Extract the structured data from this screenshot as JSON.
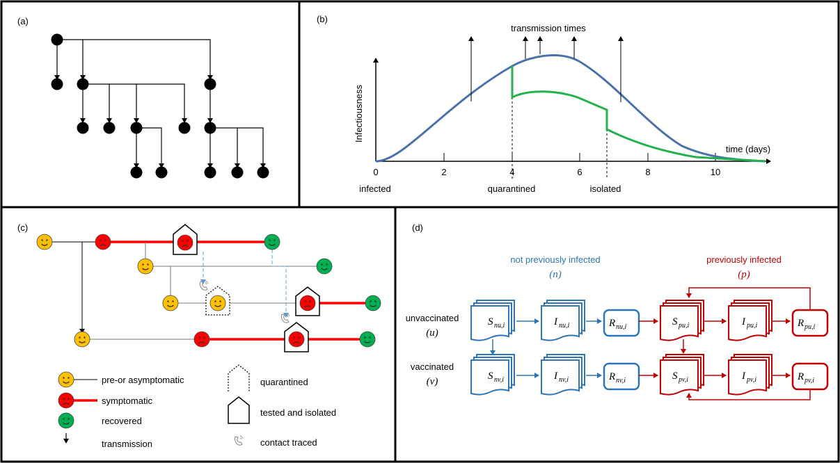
{
  "panel_a": {
    "label": "(a)"
  },
  "panel_b": {
    "label": "(b)",
    "transmission_times": "transmission times",
    "ylabel": "Infectiousness",
    "xlabel": "time (days)",
    "ticks": [
      "0",
      "2",
      "4",
      "6",
      "8",
      "10"
    ],
    "event_infected": "infected",
    "event_quarantined": "quarantined",
    "event_isolated": "isolated",
    "colors": {
      "curve": "#4a72a8",
      "reduced_curve": "#22b14c"
    }
  },
  "panel_c": {
    "label": "(c)",
    "legend": {
      "presymptomatic": "pre-or asymptomatic",
      "symptomatic": "symptomatic",
      "recovered": "recovered",
      "transmission": "transmission",
      "quarantined": "quarantined",
      "tested_isolated": "tested and isolated",
      "contact_traced": "contact traced"
    },
    "colors": {
      "presymptomatic": "#ffc000",
      "symptomatic": "#ff0000",
      "recovered": "#00b050",
      "trace_arrow": "#5b9bd5"
    }
  },
  "panel_d": {
    "label": "(d)",
    "group_n": "not previously infected",
    "group_n_sym": "(n)",
    "group_p": "previously infected",
    "group_p_sym": "(p)",
    "row_u": "unvaccinated",
    "row_u_sym": "(u)",
    "row_v": "vaccinated",
    "row_v_sym": "(v)",
    "nodes": {
      "S_nu": {
        "main": "S",
        "sub": "nu,i"
      },
      "I_nu": {
        "main": "I",
        "sub": "nu,i"
      },
      "R_nu": {
        "main": "R",
        "sub": "nu,i"
      },
      "S_pu": {
        "main": "S",
        "sub": "pu,i"
      },
      "I_pu": {
        "main": "I",
        "sub": "pu,i"
      },
      "R_pu": {
        "main": "R",
        "sub": "pu,i"
      },
      "S_nv": {
        "main": "S",
        "sub": "nv,i"
      },
      "I_nv": {
        "main": "I",
        "sub": "nv,i"
      },
      "R_nv": {
        "main": "R",
        "sub": "nv,i"
      },
      "S_pv": {
        "main": "S",
        "sub": "pv,i"
      },
      "I_pv": {
        "main": "I",
        "sub": "pv,i"
      },
      "R_pv": {
        "main": "R",
        "sub": "pv,i"
      }
    },
    "colors": {
      "n": "#2e75b6",
      "p": "#c00000"
    }
  }
}
